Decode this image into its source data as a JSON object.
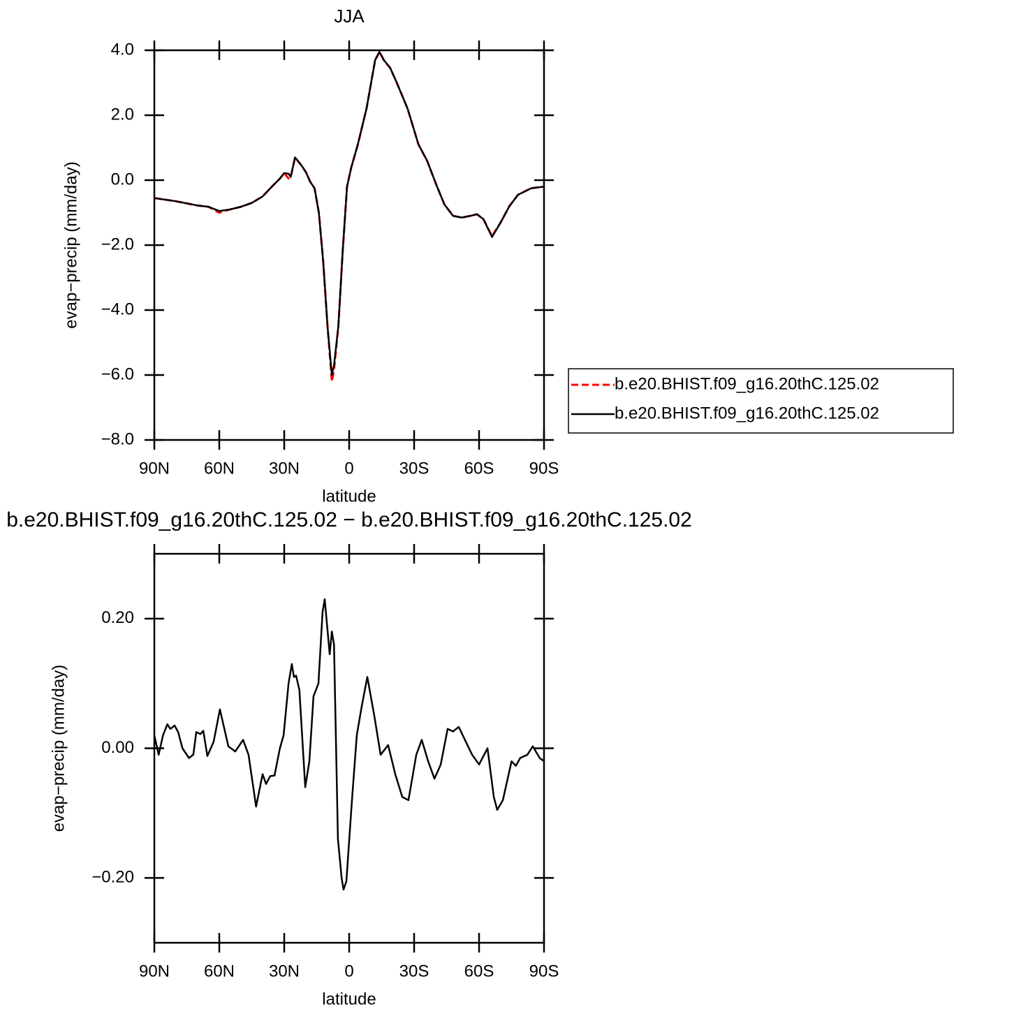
{
  "chart_data": [
    {
      "type": "line",
      "title": "JJA",
      "xlabel": "latitude",
      "ylabel": "evap−precip (mm/day)",
      "xlim": [
        90,
        -90
      ],
      "xticks": [
        {
          "value": 90,
          "label": "90N"
        },
        {
          "value": 60,
          "label": "60N"
        },
        {
          "value": 30,
          "label": "30N"
        },
        0,
        {
          "value": -30,
          "label": "30S"
        },
        {
          "value": -60,
          "label": "60S"
        },
        {
          "value": -90,
          "label": "90S"
        }
      ],
      "ylim": [
        -8,
        4
      ],
      "yticks": [
        {
          "value": 4,
          "label": "4.0"
        },
        {
          "value": 2,
          "label": "2.0"
        },
        {
          "value": 0,
          "label": "0.0"
        },
        {
          "value": -2,
          "label": "−2.0"
        },
        {
          "value": -4,
          "label": "−4.0"
        },
        {
          "value": -6,
          "label": "−6.0"
        },
        {
          "value": -8,
          "label": "−8.0"
        }
      ],
      "legend": "outside right",
      "x": [
        90,
        80,
        70,
        65,
        60,
        55,
        50,
        45,
        40,
        35,
        32,
        30,
        28,
        27,
        25,
        22,
        20,
        18,
        16,
        14,
        12,
        10,
        8,
        7,
        5,
        3,
        1,
        -1,
        -4,
        -8,
        -12,
        -14,
        -16,
        -19,
        -22,
        -27,
        -32,
        -36,
        -40,
        -44,
        -48,
        -52,
        -56,
        -59,
        -62,
        -66,
        -70,
        -74,
        -78,
        -84,
        -90
      ],
      "series": [
        {
          "name": "b.e20.BHIST.f09_g16.20thC.125.02",
          "color": "#ff0000",
          "dash": true,
          "values": [
            -0.55,
            -0.65,
            -0.78,
            -0.82,
            -1.0,
            -0.9,
            -0.82,
            -0.7,
            -0.5,
            -0.15,
            0.05,
            0.22,
            0.05,
            0.1,
            0.7,
            0.45,
            0.25,
            -0.05,
            -0.25,
            -1.0,
            -2.5,
            -4.5,
            -6.2,
            -5.85,
            -4.5,
            -2.2,
            -0.2,
            0.4,
            1.1,
            2.2,
            3.7,
            3.95,
            3.7,
            3.45,
            3.0,
            2.2,
            1.1,
            0.6,
            -0.1,
            -0.75,
            -1.1,
            -1.15,
            -1.1,
            -1.05,
            -1.2,
            -1.72,
            -1.3,
            -0.8,
            -0.45,
            -0.25,
            -0.2
          ]
        },
        {
          "name": "b.e20.BHIST.f09_g16.20thC.125.02",
          "color": "#000000",
          "dash": false,
          "values": [
            -0.55,
            -0.65,
            -0.78,
            -0.82,
            -0.95,
            -0.9,
            -0.82,
            -0.7,
            -0.5,
            -0.15,
            0.05,
            0.22,
            0.2,
            0.1,
            0.7,
            0.45,
            0.25,
            -0.05,
            -0.25,
            -1.0,
            -2.5,
            -4.5,
            -6.0,
            -5.7,
            -4.5,
            -2.2,
            -0.2,
            0.4,
            1.1,
            2.2,
            3.7,
            3.95,
            3.7,
            3.45,
            3.0,
            2.2,
            1.1,
            0.6,
            -0.1,
            -0.75,
            -1.1,
            -1.15,
            -1.1,
            -1.05,
            -1.2,
            -1.75,
            -1.3,
            -0.8,
            -0.45,
            -0.25,
            -0.2
          ]
        }
      ]
    },
    {
      "type": "line",
      "title": "b.e20.BHIST.f09_g16.20thC.125.02 − b.e20.BHIST.f09_g16.20thC.125.02",
      "xlabel": "latitude",
      "ylabel": "evap−precip (mm/day)",
      "xlim": [
        90,
        -90
      ],
      "xticks": [
        {
          "value": 90,
          "label": "90N"
        },
        {
          "value": 60,
          "label": "60N"
        },
        {
          "value": 30,
          "label": "30N"
        },
        0,
        {
          "value": -30,
          "label": "30S"
        },
        {
          "value": -60,
          "label": "60S"
        },
        {
          "value": -90,
          "label": "90S"
        }
      ],
      "ylim": [
        -0.3,
        0.3
      ],
      "yticks": [
        {
          "value": 0.2,
          "label": "0.20"
        },
        {
          "value": 0,
          "label": "0.00"
        },
        {
          "value": -0.2,
          "label": "−0.20"
        }
      ],
      "x": [
        90,
        88,
        86,
        84,
        82.6,
        80.6,
        79,
        77,
        74,
        72,
        70.6,
        68.7,
        67.4,
        65.5,
        62.6,
        59.7,
        55.8,
        52.6,
        49,
        46.5,
        43,
        40,
        38.4,
        36.5,
        34.5,
        32,
        30.3,
        28,
        26.5,
        25.5,
        24.5,
        23,
        20.3,
        18.4,
        16.5,
        14.2,
        12.3,
        11.3,
        9,
        8,
        7,
        5.2,
        3.5,
        2.6,
        1.3,
        -1.3,
        -3.5,
        -5.8,
        -8.4,
        -11.6,
        -14.5,
        -18,
        -21.3,
        -24.5,
        -27.4,
        -31,
        -33.5,
        -36.5,
        -39.4,
        -42.3,
        -45.5,
        -48,
        -50.6,
        -53.9,
        -56.8,
        -60,
        -63.9,
        -66.8,
        -68.4,
        -71,
        -75,
        -77,
        -79,
        -82.3,
        -84.8,
        -88,
        -90
      ],
      "series": [
        {
          "name": null,
          "color": "#000000",
          "dash": false,
          "values": [
            0.02,
            -0.01,
            0.02,
            0.037,
            0.03,
            0.035,
            0.025,
            0.0,
            -0.015,
            -0.01,
            0.025,
            0.022,
            0.027,
            -0.012,
            0.01,
            0.06,
            0.003,
            -0.005,
            0.013,
            -0.01,
            -0.09,
            -0.04,
            -0.055,
            -0.043,
            -0.042,
            0.0,
            0.02,
            0.1,
            0.13,
            0.11,
            0.112,
            0.09,
            -0.06,
            -0.02,
            0.08,
            0.1,
            0.21,
            0.23,
            0.145,
            0.18,
            0.16,
            -0.14,
            -0.2,
            -0.218,
            -0.205,
            -0.08,
            0.02,
            0.065,
            0.11,
            0.05,
            -0.01,
            0.005,
            -0.04,
            -0.075,
            -0.08,
            -0.01,
            0.013,
            -0.02,
            -0.047,
            -0.025,
            0.03,
            0.026,
            0.033,
            0.01,
            -0.01,
            -0.025,
            0.0,
            -0.075,
            -0.095,
            -0.08,
            -0.02,
            -0.027,
            -0.015,
            -0.01,
            0.003,
            -0.015,
            -0.02
          ]
        }
      ]
    }
  ]
}
